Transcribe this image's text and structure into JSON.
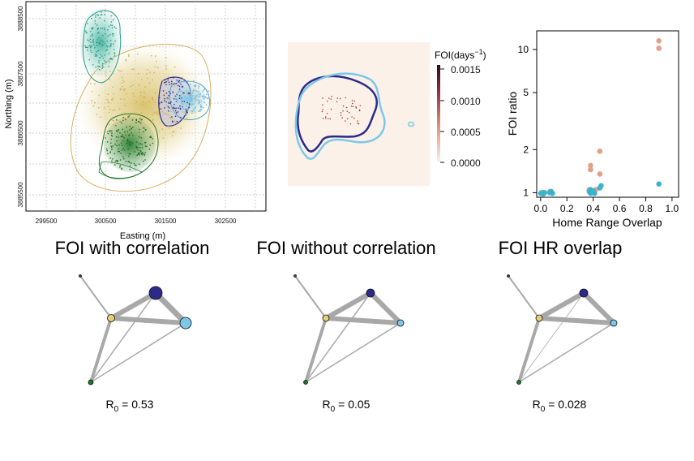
{
  "chart_data": [
    {
      "type": "map",
      "xlabel": "Easting (m)",
      "ylabel": "Northing (m)",
      "x_ticks": [
        "299500",
        "300500",
        "301500",
        "302500"
      ],
      "y_ticks": [
        "3885500",
        "3886500",
        "3887500",
        "3888500"
      ],
      "colors": {
        "mustard": "#d8c067",
        "green": "#1c7a2b",
        "teal": "#3aae9a",
        "navy": "#2b2a8a",
        "sky": "#7cc8e8"
      },
      "grid": true
    },
    {
      "type": "heatmap",
      "legend_title": "FOI(days",
      "legend_sup": "−1",
      "legend_close": ")",
      "legend_ticks": [
        "0.0015",
        "0.0010",
        "0.0005",
        "0.0000"
      ],
      "colors": {
        "background": "#fbf1e8",
        "outline_navy": "#2b2a8a",
        "outline_sky": "#7cc8e8",
        "hotspot": "#a62a2a"
      }
    },
    {
      "type": "scatter",
      "xlabel": "Home Range Overlap",
      "ylabel": "FOI ratio",
      "x_ticks": [
        "0.0",
        "0.2",
        "0.4",
        "0.6",
        "0.8",
        "1.0"
      ],
      "y_ticks": [
        "1",
        "2",
        "5",
        "10"
      ],
      "xlim": [
        -0.03,
        1.05
      ],
      "ylim": [
        0.93,
        13.5
      ],
      "y_scale": "log",
      "series": [
        {
          "color": "#e0a08a",
          "points": [
            [
              0.01,
              1.0
            ],
            [
              0.02,
              1.0
            ],
            [
              0.07,
              1.02
            ],
            [
              0.08,
              1.0
            ],
            [
              0.37,
              1.05
            ],
            [
              0.38,
              1.45
            ],
            [
              0.38,
              1.55
            ],
            [
              0.39,
              1.02
            ],
            [
              0.42,
              1.05
            ],
            [
              0.45,
              1.35
            ],
            [
              0.45,
              1.95
            ],
            [
              0.9,
              10.2
            ],
            [
              0.9,
              11.5
            ]
          ]
        },
        {
          "color": "#3cb3cc",
          "points": [
            [
              0.0,
              0.99
            ],
            [
              0.01,
              1.0
            ],
            [
              0.02,
              0.98
            ],
            [
              0.03,
              1.0
            ],
            [
              0.07,
              1.0
            ],
            [
              0.08,
              1.02
            ],
            [
              0.09,
              0.99
            ],
            [
              0.37,
              1.02
            ],
            [
              0.38,
              1.05
            ],
            [
              0.38,
              0.99
            ],
            [
              0.39,
              1.0
            ],
            [
              0.4,
              1.03
            ],
            [
              0.41,
              0.99
            ],
            [
              0.45,
              1.08
            ],
            [
              0.46,
              1.12
            ],
            [
              0.9,
              1.15
            ]
          ]
        }
      ]
    },
    {
      "type": "network",
      "title": "FOI with correlation",
      "r0_label": "R",
      "r0_sub": "0",
      "r0_value": " = 0.53",
      "node_sizes": {
        "mustard": 4.5,
        "navy": 8,
        "sky": 7,
        "green": 3,
        "gray": 1.5
      },
      "edge_widths": {
        "mustard-navy": 6,
        "mustard-sky": 6,
        "navy-sky": 7,
        "mustard-green": 4,
        "green-navy": 1.5,
        "green-sky": 1.5,
        "mustard-gray": 2
      }
    },
    {
      "type": "network",
      "title": "FOI without correlation",
      "r0_label": "R",
      "r0_sub": "0",
      "r0_value": " = 0.05",
      "node_sizes": {
        "mustard": 4,
        "navy": 5,
        "sky": 4,
        "green": 2.5,
        "gray": 1.5
      },
      "edge_widths": {
        "mustard-navy": 6,
        "mustard-sky": 6,
        "navy-sky": 6,
        "mustard-green": 4,
        "green-navy": 1.5,
        "green-sky": 1.5,
        "mustard-gray": 2
      }
    },
    {
      "type": "network",
      "title": "FOI HR overlap",
      "r0_label": "R",
      "r0_sub": "0",
      "r0_value": " = 0.028",
      "node_sizes": {
        "mustard": 4,
        "navy": 5,
        "sky": 4,
        "green": 2.5,
        "gray": 1.5
      },
      "edge_widths": {
        "mustard-navy": 6,
        "mustard-sky": 6,
        "navy-sky": 6,
        "mustard-green": 4,
        "green-navy": 0.8,
        "green-sky": 1.5,
        "mustard-gray": 2
      }
    }
  ]
}
